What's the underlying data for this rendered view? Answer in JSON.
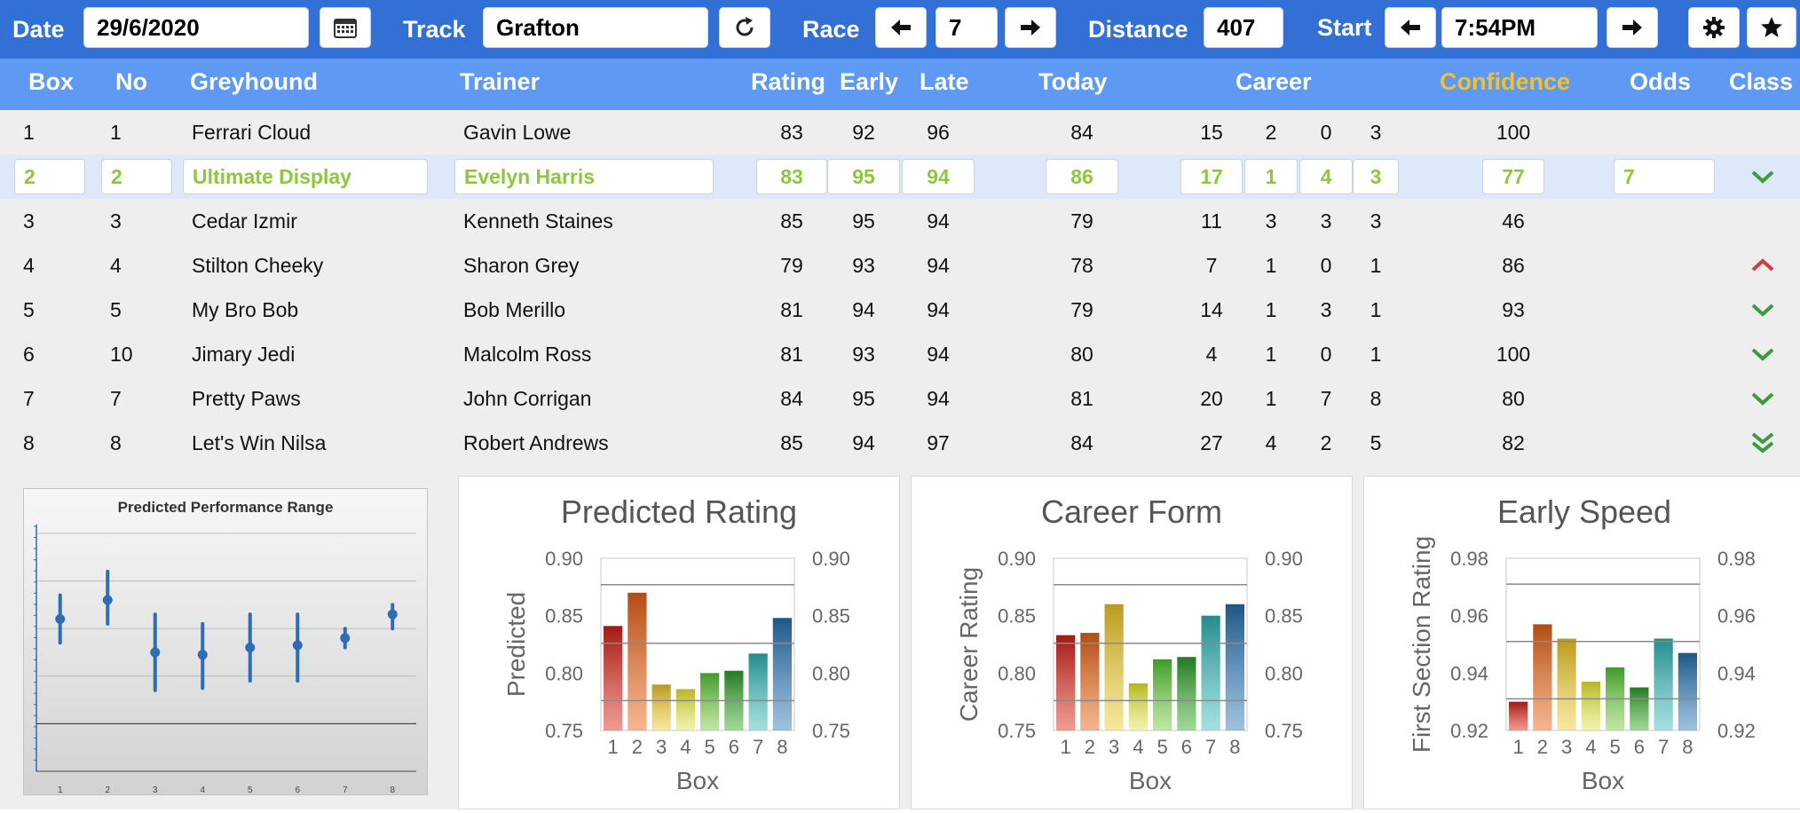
{
  "toolbar": {
    "date_label": "Date",
    "date_value": "29/6/2020",
    "track_label": "Track",
    "track_value": "Grafton",
    "race_label": "Race",
    "race_value": "7",
    "distance_label": "Distance",
    "distance_value": "407",
    "start_label": "Start",
    "start_value": "7:54PM",
    "icons": [
      "calendar-icon",
      "refresh-icon",
      "arrow-left-icon",
      "arrow-right-icon",
      "gear-icon",
      "star-icon"
    ]
  },
  "table": {
    "headers": {
      "box": "Box",
      "no": "No",
      "greyhound": "Greyhound",
      "trainer": "Trainer",
      "rating": "Rating",
      "early": "Early",
      "late": "Late",
      "today": "Today",
      "career": "Career",
      "confidence": "Confidence",
      "odds": "Odds",
      "class": "Class"
    },
    "confidence_color": "#f2c12e",
    "rows": [
      {
        "box": "1",
        "no": "1",
        "greyhound": "Ferrari Cloud",
        "trainer": "Gavin Lowe",
        "rating": "83",
        "early": "92",
        "late": "96",
        "today": "84",
        "c1": "15",
        "c2": "2",
        "c3": "0",
        "c4": "3",
        "confidence": "100",
        "odds": "",
        "class": "none"
      },
      {
        "box": "2",
        "no": "2",
        "greyhound": "Ultimate Display",
        "trainer": "Evelyn Harris",
        "rating": "83",
        "early": "95",
        "late": "94",
        "today": "86",
        "c1": "17",
        "c2": "1",
        "c3": "4",
        "c4": "3",
        "confidence": "77",
        "odds": "7",
        "class": "check-green",
        "selected": true
      },
      {
        "box": "3",
        "no": "3",
        "greyhound": "Cedar Izmir",
        "trainer": "Kenneth Staines",
        "rating": "85",
        "early": "95",
        "late": "94",
        "today": "79",
        "c1": "11",
        "c2": "3",
        "c3": "3",
        "c4": "3",
        "confidence": "46",
        "odds": "",
        "class": "none"
      },
      {
        "box": "4",
        "no": "4",
        "greyhound": "Stilton Cheeky",
        "trainer": "Sharon Grey",
        "rating": "79",
        "early": "93",
        "late": "94",
        "today": "78",
        "c1": "7",
        "c2": "1",
        "c3": "0",
        "c4": "1",
        "confidence": "86",
        "odds": "",
        "class": "up-red"
      },
      {
        "box": "5",
        "no": "5",
        "greyhound": "My Bro Bob",
        "trainer": "Bob Merillo",
        "rating": "81",
        "early": "94",
        "late": "94",
        "today": "79",
        "c1": "14",
        "c2": "1",
        "c3": "3",
        "c4": "1",
        "confidence": "93",
        "odds": "",
        "class": "check-green"
      },
      {
        "box": "6",
        "no": "10",
        "greyhound": "Jimary Jedi",
        "trainer": "Malcolm Ross",
        "rating": "81",
        "early": "93",
        "late": "94",
        "today": "80",
        "c1": "4",
        "c2": "1",
        "c3": "0",
        "c4": "1",
        "confidence": "100",
        "odds": "",
        "class": "check-green"
      },
      {
        "box": "7",
        "no": "7",
        "greyhound": "Pretty Paws",
        "trainer": "John Corrigan",
        "rating": "84",
        "early": "95",
        "late": "94",
        "today": "81",
        "c1": "20",
        "c2": "1",
        "c3": "7",
        "c4": "8",
        "confidence": "80",
        "odds": "",
        "class": "check-green"
      },
      {
        "box": "8",
        "no": "8",
        "greyhound": "Let's Win Nilsa",
        "trainer": "Robert Andrews",
        "rating": "85",
        "early": "94",
        "late": "97",
        "today": "84",
        "c1": "27",
        "c2": "4",
        "c3": "2",
        "c4": "5",
        "confidence": "82",
        "odds": "",
        "class": "double-down-green"
      }
    ]
  },
  "chart_data": [
    {
      "type": "errorbar",
      "title": "Predicted Performance Range",
      "categories": [
        "1",
        "2",
        "3",
        "4",
        "5",
        "6",
        "7",
        "8"
      ],
      "mid": [
        0.62,
        0.66,
        0.55,
        0.545,
        0.56,
        0.565,
        0.58,
        0.63
      ],
      "low": [
        0.57,
        0.61,
        0.47,
        0.475,
        0.49,
        0.49,
        0.56,
        0.6
      ],
      "high": [
        0.67,
        0.72,
        0.63,
        0.61,
        0.63,
        0.63,
        0.6,
        0.65
      ],
      "ylim": [
        0.3,
        0.8
      ],
      "color": "#2e6db5"
    },
    {
      "type": "bar",
      "title": "Predicted Rating",
      "ylabel": "Predicted",
      "xlabel": "Box",
      "categories": [
        "1",
        "2",
        "3",
        "4",
        "5",
        "6",
        "7",
        "8"
      ],
      "values": [
        0.841,
        0.87,
        0.79,
        0.786,
        0.8,
        0.802,
        0.817,
        0.848
      ],
      "ylim": [
        0.75,
        0.9
      ],
      "yticks": [
        "0.90",
        "0.85",
        "0.80",
        "0.75"
      ],
      "reflines": [
        0.877,
        0.826,
        0.776
      ]
    },
    {
      "type": "bar",
      "title": "Career Form",
      "ylabel": "Career Rating",
      "xlabel": "Box",
      "categories": [
        "1",
        "2",
        "3",
        "4",
        "5",
        "6",
        "7",
        "8"
      ],
      "values": [
        0.833,
        0.835,
        0.86,
        0.791,
        0.812,
        0.814,
        0.85,
        0.86
      ],
      "ylim": [
        0.75,
        0.9
      ],
      "yticks": [
        "0.90",
        "0.85",
        "0.80",
        "0.75"
      ],
      "reflines": [
        0.877,
        0.826,
        0.776
      ]
    },
    {
      "type": "bar",
      "title": "Early Speed",
      "ylabel": "First Section Rating",
      "xlabel": "Box",
      "categories": [
        "1",
        "2",
        "3",
        "4",
        "5",
        "6",
        "7",
        "8"
      ],
      "values": [
        0.93,
        0.957,
        0.952,
        0.937,
        0.942,
        0.935,
        0.952,
        0.947
      ],
      "ylim": [
        0.92,
        0.98
      ],
      "yticks": [
        "0.98",
        "0.96",
        "0.94",
        "0.92"
      ],
      "reflines": [
        0.971,
        0.951,
        0.931
      ]
    }
  ]
}
